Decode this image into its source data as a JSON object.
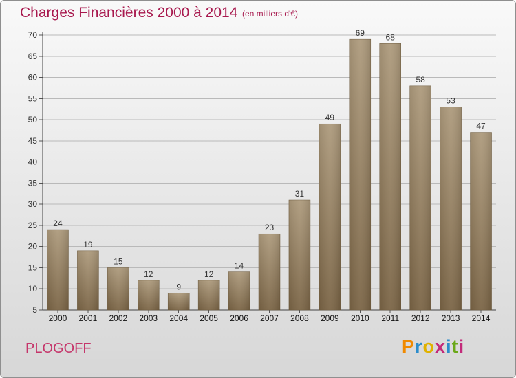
{
  "header": {
    "title": "Charges Financières 2000 à 2014",
    "subtitle": "(en milliers d'€)"
  },
  "footer": {
    "commune": "PLOGOFF",
    "logo": {
      "letters": [
        "P",
        "r",
        "o",
        "x",
        "i",
        "t",
        "i"
      ]
    }
  },
  "colors": {
    "title": "#a8194e",
    "commune": "#c5356a",
    "bar_top": "#ad9a7c",
    "bar_bottom": "#7a6445",
    "logo_letters": [
      "#f08a00",
      "#2a8ccc",
      "#e0b200",
      "#c32a7a",
      "#2a8ccc",
      "#6aa818",
      "#c32a7a"
    ]
  },
  "chart_data": {
    "type": "bar",
    "title": "Charges Financières 2000 à 2014",
    "subtitle": "(en milliers d'€)",
    "categories": [
      "2000",
      "2001",
      "2002",
      "2003",
      "2004",
      "2005",
      "2006",
      "2007",
      "2008",
      "2009",
      "2010",
      "2011",
      "2012",
      "2013",
      "2014"
    ],
    "values": [
      24,
      19,
      15,
      12,
      9,
      12,
      14,
      23,
      31,
      49,
      69,
      68,
      58,
      53,
      47
    ],
    "ylim": [
      5,
      70
    ],
    "yticks": [
      5,
      10,
      15,
      20,
      25,
      30,
      35,
      40,
      45,
      50,
      55,
      60,
      65,
      70
    ],
    "grid": true,
    "data_labels": true
  }
}
